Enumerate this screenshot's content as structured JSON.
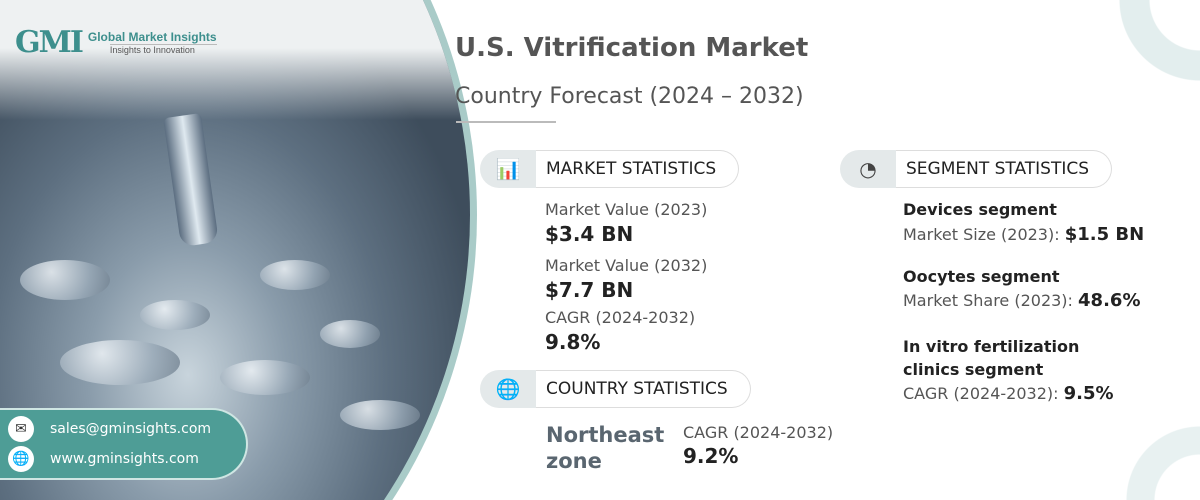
{
  "brand": {
    "logo_mark": "GMI",
    "name": "Global Market Insights",
    "tagline": "Insights to Innovation"
  },
  "header": {
    "title": "U.S. Vitrification Market",
    "subtitle": "Country Forecast (2024 – 2032)"
  },
  "market_statistics": {
    "label": "MARKET STATISTICS",
    "icon": "chart-globe-icon",
    "items": [
      {
        "label": "Market Value (2023)",
        "value": "$3.4 BN"
      },
      {
        "label": "Market Value (2032)",
        "value": "$7.7 BN"
      },
      {
        "label": "CAGR (2024-2032)",
        "value": "9.8%"
      }
    ]
  },
  "country_statistics": {
    "label": "COUNTRY STATISTICS",
    "icon": "globe-icon",
    "region": "Northeast zone",
    "cagr_label": "CAGR (2024-2032)",
    "cagr_value": "9.2%"
  },
  "segment_statistics": {
    "label": "SEGMENT STATISTICS",
    "icon": "pie-chart-icon",
    "items": [
      {
        "name": "Devices segment",
        "metric": "Market Size (2023):",
        "value": "$1.5 BN"
      },
      {
        "name": "Oocytes segment",
        "metric": "Market Share (2023):",
        "value": "48.6%"
      },
      {
        "name": "In vitro fertilization clinics segment",
        "metric": "CAGR (2024-2032):",
        "value": "9.5%"
      }
    ]
  },
  "contact": {
    "email": "sales@gminsights.com",
    "website": "www.gminsights.com"
  },
  "colors": {
    "accent": "#4e9d96",
    "text": "#555555"
  }
}
